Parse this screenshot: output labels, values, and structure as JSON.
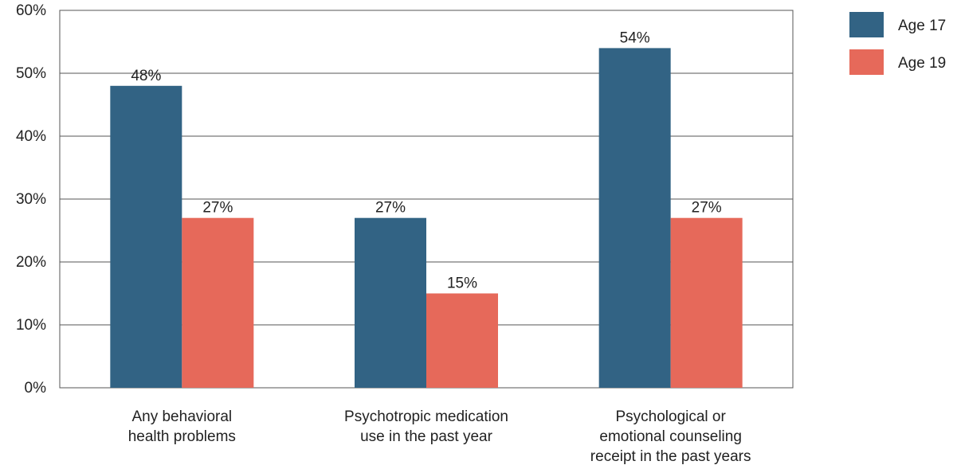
{
  "chart_data": {
    "type": "bar",
    "categories": [
      [
        "Any behavioral",
        "health problems"
      ],
      [
        "Psychotropic medication",
        "use in the past year"
      ],
      [
        "Psychological or",
        "emotional counseling",
        "receipt in the past years"
      ]
    ],
    "series": [
      {
        "name": "Age 17",
        "color": "#326384",
        "values": [
          48,
          27,
          54
        ],
        "labels": [
          "48%",
          "27%",
          "54%"
        ]
      },
      {
        "name": "Age 19",
        "color": "#e6695a",
        "values": [
          27,
          15,
          27
        ],
        "labels": [
          "27%",
          "15%",
          "27%"
        ]
      }
    ],
    "y_ticks": [
      {
        "value": 0,
        "label": "0%"
      },
      {
        "value": 10,
        "label": "10%"
      },
      {
        "value": 20,
        "label": "20%"
      },
      {
        "value": 30,
        "label": "30%"
      },
      {
        "value": 40,
        "label": "40%"
      },
      {
        "value": 50,
        "label": "50%"
      },
      {
        "value": 60,
        "label": "60%"
      }
    ],
    "ylim": [
      0,
      60
    ],
    "grid": true,
    "legend_position": "top-right",
    "title": "",
    "xlabel": "",
    "ylabel": ""
  }
}
